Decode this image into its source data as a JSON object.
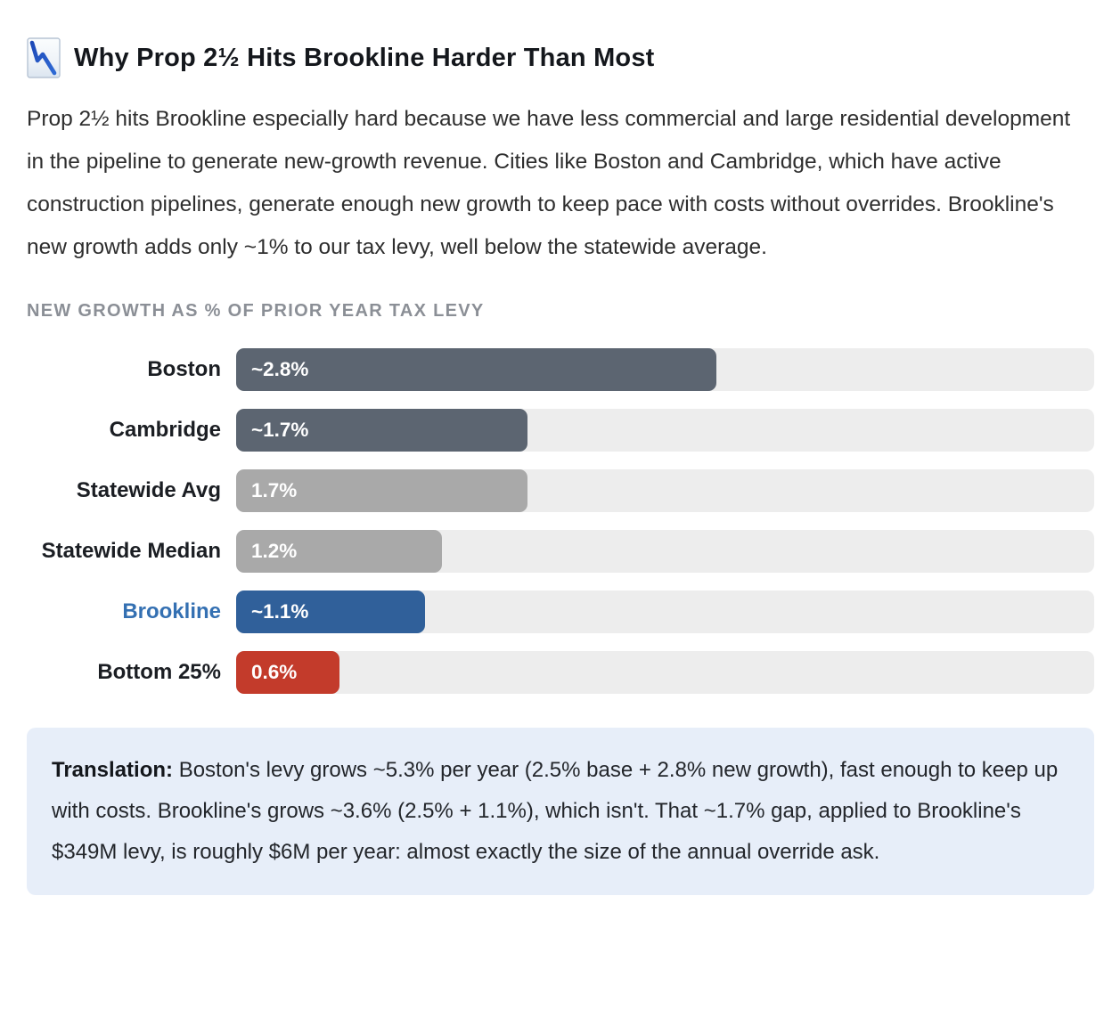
{
  "header": {
    "icon": "chart-decreasing-emoji",
    "title": "Why Prop 2½ Hits Brookline Harder Than Most"
  },
  "intro": "Prop 2½ hits Brookline especially hard because we have less commercial and large residential development in the pipeline to generate new-growth revenue. Cities like Boston and Cambridge, which have active construction pipelines, generate enough new growth to keep pace with costs without overrides. Brookline's new growth adds only ~1% to our tax levy, well below the statewide average.",
  "chart_data": {
    "type": "bar",
    "orientation": "horizontal",
    "title": "NEW GROWTH AS % OF PRIOR YEAR TAX LEVY",
    "xlabel": "",
    "ylabel": "",
    "xlim": [
      0,
      5
    ],
    "grid": false,
    "legend": false,
    "categories": [
      "Boston",
      "Cambridge",
      "Statewide Avg",
      "Statewide Median",
      "Brookline",
      "Bottom 25%"
    ],
    "values": [
      2.8,
      1.7,
      1.7,
      1.2,
      1.1,
      0.6
    ],
    "value_labels": [
      "~2.8%",
      "~1.7%",
      "1.7%",
      "1.2%",
      "~1.1%",
      "0.6%"
    ],
    "bar_colors": [
      "#5c6571",
      "#5c6571",
      "#a9a9a9",
      "#a9a9a9",
      "#30609a",
      "#c33b2b"
    ],
    "category_colors": [
      "#1b1e23",
      "#1b1e23",
      "#1b1e23",
      "#1b1e23",
      "#3470b2",
      "#1b1e23"
    ],
    "track_color": "#ededed",
    "value_label_color": "#ffffff"
  },
  "translation": {
    "label": "Translation:",
    "text": " Boston's levy grows ~5.3% per year (2.5% base + 2.8% new growth), fast enough to keep up with costs. Brookline's grows ~3.6% (2.5% + 1.1%), which isn't. That ~1.7% gap, applied to Brookline's $349M levy, is roughly $6M per year: almost exactly the size of the annual override ask."
  },
  "colors": {
    "accent_blue": "#30609a",
    "alert_red": "#c33b2b",
    "slate": "#5c6571",
    "muted_gray": "#a9a9a9",
    "callout_bg": "#e7eef9"
  }
}
